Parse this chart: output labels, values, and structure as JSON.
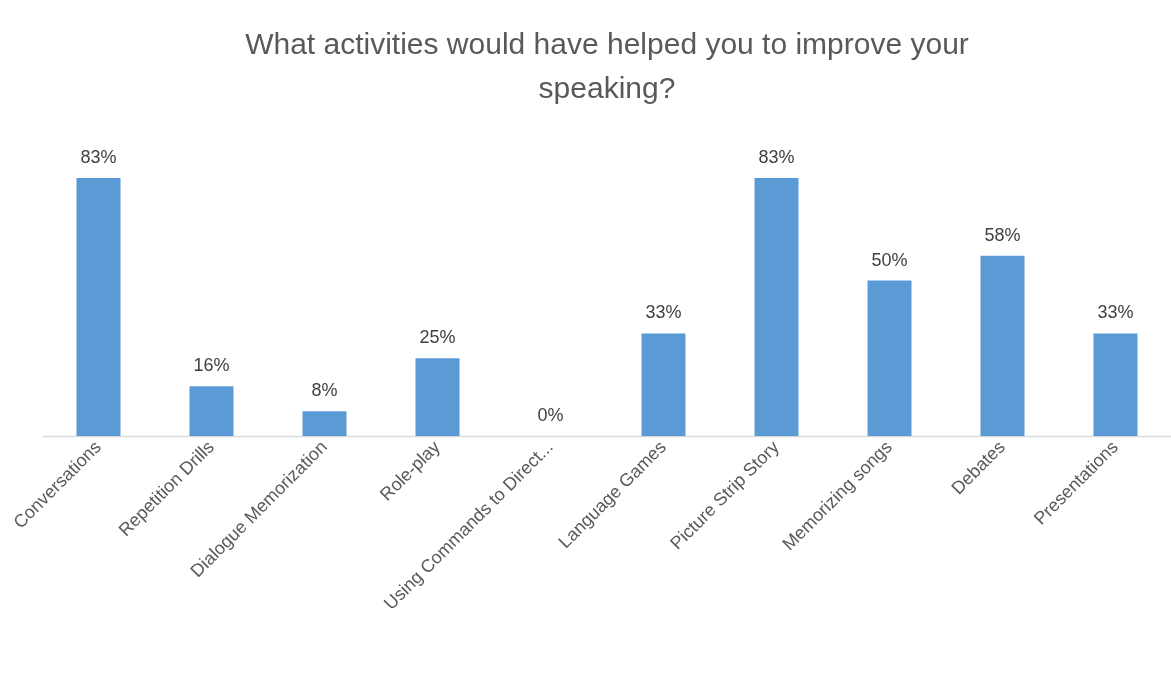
{
  "chart_data": {
    "type": "bar",
    "title": "What activities would have helped you to improve your speaking?",
    "categories": [
      "Conversations",
      "Repetition Drills",
      "Dialogue Memorization",
      "Role-play",
      "Using Commands to Direct...",
      "Language Games",
      "Picture Strip Story",
      "Memorizing songs",
      "Debates",
      "Presentations"
    ],
    "values": [
      83,
      16,
      8,
      25,
      0,
      33,
      83,
      50,
      58,
      33
    ],
    "value_labels": [
      "83%",
      "16%",
      "8%",
      "25%",
      "0%",
      "33%",
      "83%",
      "50%",
      "58%",
      "33%"
    ],
    "color": "#5b9bd5",
    "tick_labels": "x"
  }
}
